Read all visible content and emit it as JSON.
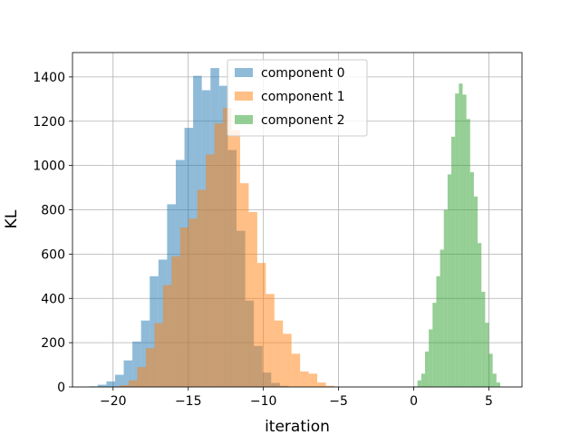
{
  "chart_data": {
    "type": "histogram",
    "title": "",
    "xlabel": "iteration",
    "ylabel": "KL",
    "xlim": [
      -22.7,
      7.2
    ],
    "ylim": [
      0,
      1510
    ],
    "xticks": [
      -20,
      -15,
      -10,
      -5,
      0,
      5
    ],
    "xtick_labels": [
      "−20",
      "−15",
      "−10",
      "−5",
      "0",
      "5"
    ],
    "yticks": [
      0,
      200,
      400,
      600,
      800,
      1000,
      1200,
      1400
    ],
    "ytick_labels": [
      "0",
      "200",
      "400",
      "600",
      "800",
      "1000",
      "1200",
      "1400"
    ],
    "grid": true,
    "legend_position": "upper center",
    "series": [
      {
        "name": "component 0",
        "color": "#1f77b4",
        "alpha": 0.5,
        "bin_start": -21.6,
        "bin_width": 0.577,
        "counts": [
          3,
          10,
          25,
          55,
          120,
          205,
          300,
          500,
          575,
          825,
          1025,
          1170,
          1405,
          1340,
          1440,
          1360,
          1070,
          705,
          390,
          185,
          65,
          18,
          5
        ]
      },
      {
        "name": "component 1",
        "color": "#ff7f0e",
        "alpha": 0.5,
        "bin_start": -20.1,
        "bin_width": 0.57,
        "counts": [
          2,
          8,
          30,
          90,
          175,
          288,
          460,
          590,
          720,
          760,
          890,
          1050,
          1190,
          1260,
          1160,
          920,
          790,
          560,
          420,
          300,
          240,
          150,
          70,
          60,
          20,
          5
        ]
      },
      {
        "name": "component 2",
        "color": "#2ca02c",
        "alpha": 0.5,
        "bin_start": 0.0,
        "bin_width": 0.25,
        "counts": [
          3,
          30,
          60,
          160,
          260,
          380,
          500,
          620,
          800,
          960,
          1130,
          1325,
          1370,
          1320,
          1210,
          970,
          860,
          650,
          430,
          290,
          150,
          60,
          20
        ]
      }
    ]
  }
}
